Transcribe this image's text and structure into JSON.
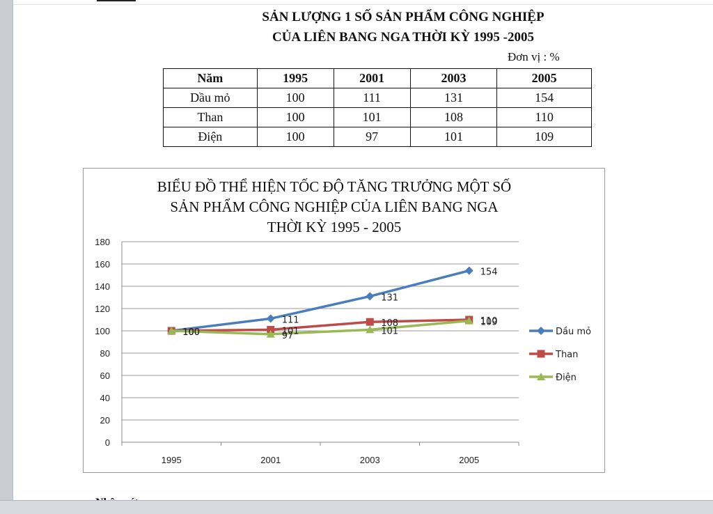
{
  "document": {
    "title_line1": "SẢN LƯỢNG 1 SỐ SẢN PHẨM CÔNG NGHIỆP",
    "title_line2": "CỦA LIÊN BANG NGA THỜI KỲ 1995 -2005",
    "unit": "Đơn vị : %",
    "table": {
      "headers": [
        "Năm",
        "1995",
        "2001",
        "2003",
        "2005"
      ],
      "rows": [
        [
          "Dầu mỏ",
          "100",
          "111",
          "131",
          "154"
        ],
        [
          "Than",
          "100",
          "101",
          "108",
          "110"
        ],
        [
          "Điện",
          "100",
          "97",
          "101",
          "109"
        ]
      ]
    }
  },
  "chart_data": {
    "type": "line",
    "title_lines": [
      "BIỂU ĐỒ THỂ HIỆN TỐC ĐỘ TĂNG TRƯỞNG MỘT SỐ",
      "SẢN PHẨM CÔNG NGHIỆP CỦA LIÊN BANG NGA",
      "THỜI KỲ 1995 - 2005"
    ],
    "categories": [
      "1995",
      "2001",
      "2003",
      "2005"
    ],
    "ylim": [
      0,
      180
    ],
    "yticks": [
      0,
      20,
      40,
      60,
      80,
      100,
      120,
      140,
      160,
      180
    ],
    "grid": true,
    "legend_position": "right",
    "series": [
      {
        "name": "Dầu mỏ",
        "values": [
          100,
          111,
          131,
          154
        ],
        "color": "#4a7ebb",
        "marker": "diamond"
      },
      {
        "name": "Than",
        "values": [
          100,
          101,
          108,
          110
        ],
        "color": "#be4b48",
        "marker": "square"
      },
      {
        "name": "Điện",
        "values": [
          100,
          97,
          101,
          109
        ],
        "color": "#98b954",
        "marker": "triangle"
      }
    ]
  }
}
